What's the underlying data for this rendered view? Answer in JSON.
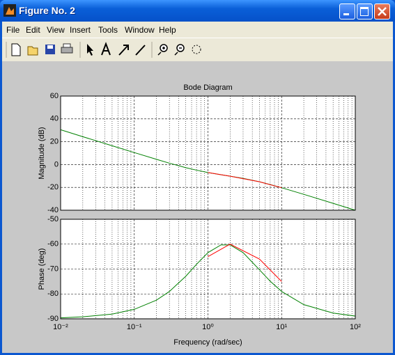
{
  "window": {
    "title": "Figure No. 2",
    "menu": [
      "File",
      "Edit",
      "View",
      "Insert",
      "Tools",
      "Window",
      "Help"
    ]
  },
  "chart_data": [
    {
      "type": "line",
      "title": "Bode Diagram",
      "ylabel": "Magnitude (dB)",
      "xscale": "log",
      "grid": true,
      "xlim": [
        0.01,
        100
      ],
      "ylim": [
        -40,
        60
      ],
      "yticks": [
        -40,
        -20,
        0,
        20,
        40,
        60
      ],
      "series": [
        {
          "color": "#008000",
          "x": [
            0.01,
            0.02,
            0.05,
            0.1,
            0.2,
            0.3,
            0.5,
            0.7,
            1,
            1.5,
            2,
            3,
            5,
            7,
            10,
            20,
            50,
            100
          ],
          "values": [
            30.5,
            24.4,
            16.5,
            10.5,
            4.6,
            1.2,
            -2.7,
            -4.9,
            -7.0,
            -8.9,
            -10.2,
            -12.1,
            -15.1,
            -17.5,
            -20.3,
            -26.1,
            -34.0,
            -40.0
          ]
        },
        {
          "color": "#ff0000",
          "x": [
            1,
            2,
            5,
            10
          ],
          "values": [
            -7.0,
            -10.2,
            -15.1,
            -20.3
          ]
        }
      ]
    },
    {
      "type": "line",
      "ylabel": "Phase (deg)",
      "xlabel": "Frequency  (rad/sec)",
      "xscale": "log",
      "grid": true,
      "xlim": [
        0.01,
        100
      ],
      "ylim": [
        -90,
        -50
      ],
      "yticks": [
        -90,
        -80,
        -70,
        -60,
        -50
      ],
      "xticks": [
        {
          "value": 0.01,
          "label": "10⁻²"
        },
        {
          "value": 0.1,
          "label": "10⁻¹"
        },
        {
          "value": 1,
          "label": "10⁰"
        },
        {
          "value": 10,
          "label": "10¹"
        },
        {
          "value": 100,
          "label": "10²"
        }
      ],
      "series": [
        {
          "color": "#008000",
          "x": [
            0.01,
            0.02,
            0.05,
            0.1,
            0.2,
            0.3,
            0.5,
            0.7,
            1,
            1.5,
            2,
            3,
            5,
            7,
            10,
            20,
            50,
            100
          ],
          "values": [
            -89.6,
            -89.2,
            -88.1,
            -86.2,
            -82.5,
            -79.0,
            -72.9,
            -68.1,
            -63.4,
            -60.3,
            -60.3,
            -63.4,
            -70.3,
            -74.9,
            -79.0,
            -84.3,
            -87.7,
            -88.9
          ]
        },
        {
          "color": "#ff0000",
          "x": [
            1,
            2,
            5,
            10
          ],
          "values": [
            -65,
            -60,
            -66,
            -75
          ]
        }
      ]
    }
  ]
}
